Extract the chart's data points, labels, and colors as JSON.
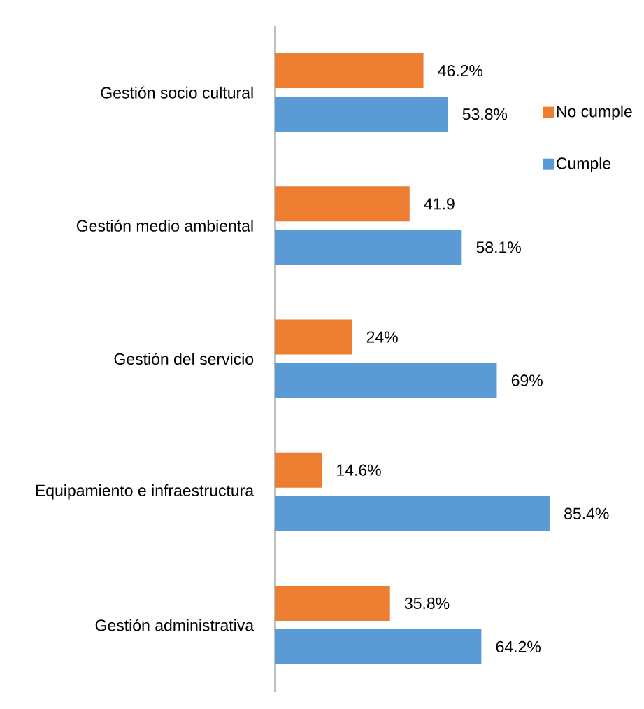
{
  "chart_data": {
    "type": "bar",
    "orientation": "horizontal",
    "categories": [
      "Gestión socio cultural",
      "Gestión medio ambiental",
      "Gestión del servicio",
      "Equipamiento e infraestructura",
      "Gestión administrativa"
    ],
    "series": [
      {
        "name": "No cumple",
        "color": "#ed7d31",
        "values": [
          46.2,
          41.9,
          24,
          14.6,
          35.8
        ],
        "value_labels": [
          "46.2%",
          "41.9",
          "24%",
          "14.6%",
          "35.8%"
        ]
      },
      {
        "name": "Cumple",
        "color": "#5b9bd5",
        "values": [
          53.8,
          58.1,
          69,
          85.4,
          64.2
        ],
        "value_labels": [
          "53.8%",
          "58.1%",
          "69%",
          "85.4%",
          "64.2%"
        ]
      }
    ],
    "legend": "top right",
    "tick_labels": "y"
  }
}
